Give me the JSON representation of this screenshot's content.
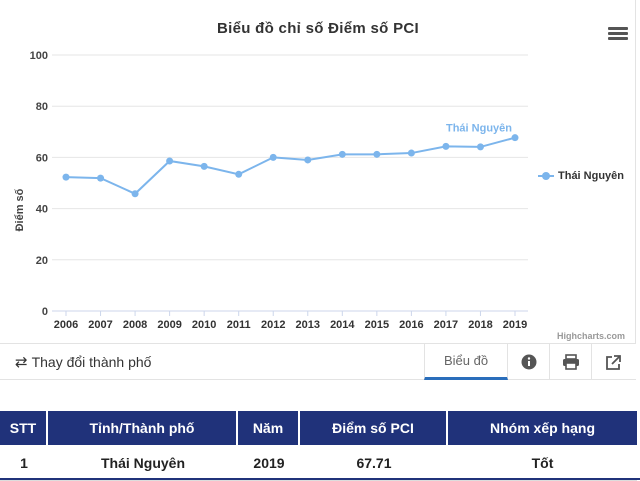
{
  "chart_data": {
    "type": "line",
    "title": "Biểu đồ chỉ số Điểm số PCI",
    "ylabel": "Điểm số",
    "xlabel": "",
    "ylim": [
      0,
      100
    ],
    "yticks": [
      0,
      20,
      40,
      60,
      80,
      100
    ],
    "categories": [
      "2006",
      "2007",
      "2008",
      "2009",
      "2010",
      "2011",
      "2012",
      "2013",
      "2014",
      "2015",
      "2016",
      "2017",
      "2018",
      "2019"
    ],
    "series": [
      {
        "name": "Thái Nguyên",
        "values": [
          52.3,
          51.9,
          45.8,
          58.6,
          56.5,
          53.4,
          60.0,
          59.0,
          61.2,
          61.2,
          61.7,
          64.3,
          64.1,
          67.71
        ]
      }
    ],
    "legend_position": "right",
    "grid": true,
    "series_color": "#7cb5ec",
    "credits": "Highcharts.com"
  },
  "toolbar": {
    "change_city_label": "Thay đổi thành phố",
    "chart_tab_label": "Biểu đồ"
  },
  "table": {
    "headers": [
      "STT",
      "Tỉnh/Thành phố",
      "Năm",
      "Điểm số PCI",
      "Nhóm xếp hạng"
    ],
    "rows": [
      [
        "1",
        "Thái Nguyên",
        "2019",
        "67.71",
        "Tốt"
      ]
    ]
  },
  "colors": {
    "header_bg": "#20327a",
    "active_tab": "#2a6ebb"
  }
}
